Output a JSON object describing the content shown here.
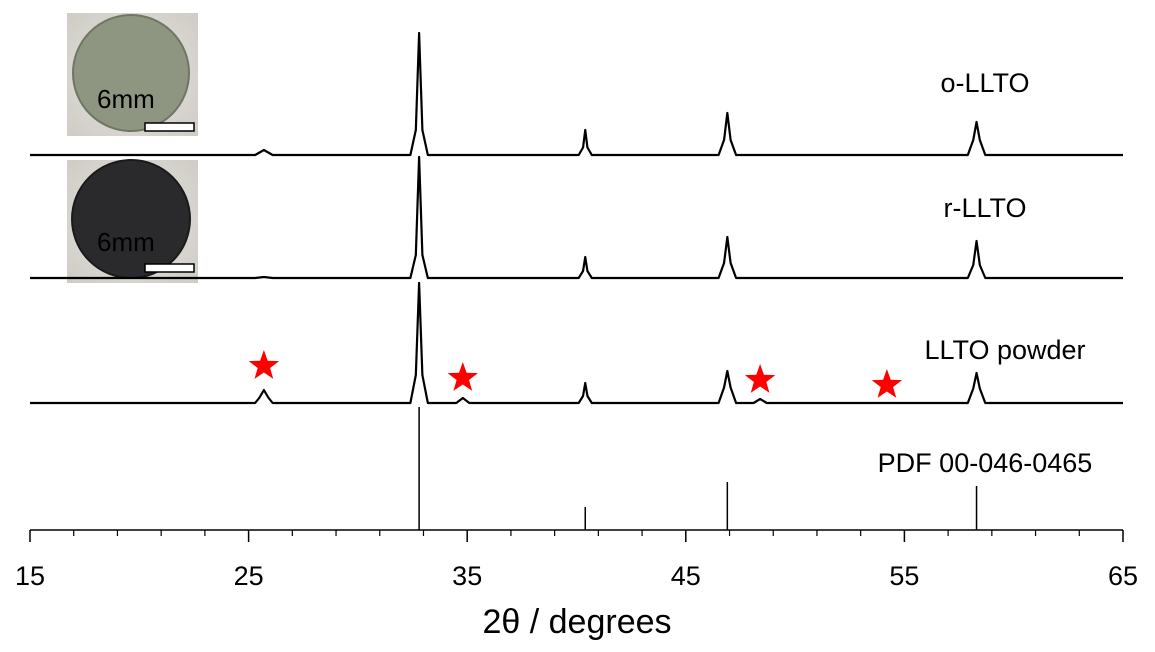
{
  "chart_data": {
    "type": "line",
    "x_label": "2θ / degrees",
    "xlim": [
      15,
      65
    ],
    "xticks": [
      15,
      25,
      35,
      45,
      55,
      65
    ],
    "xminorticks": [
      17,
      19,
      21,
      23,
      27,
      29,
      31,
      33,
      37,
      39,
      41,
      43,
      47,
      49,
      51,
      53,
      57,
      59,
      61,
      63
    ],
    "ylim": [
      0,
      100
    ],
    "series": [
      {
        "name": "o-LLTO",
        "color": "#000000",
        "x": [
          15,
          25.3,
          25.7,
          26.1,
          32.4,
          32.65,
          32.8,
          32.95,
          33.2,
          40.1,
          40.3,
          40.4,
          40.5,
          40.7,
          46.5,
          46.75,
          46.9,
          47.05,
          47.3,
          57.9,
          58.15,
          58.3,
          58.45,
          58.7,
          65
        ],
        "values": [
          75,
          75,
          76,
          75,
          75,
          80,
          99.4,
          80,
          75,
          75,
          76.5,
          80,
          76.5,
          75,
          75,
          78,
          83.4,
          78,
          75,
          75,
          78,
          81.6,
          78,
          75,
          75
        ]
      },
      {
        "name": "r-LLTO",
        "color": "#000000",
        "x": [
          15,
          25.3,
          25.7,
          26.1,
          32.4,
          32.65,
          32.8,
          32.95,
          33.2,
          40.1,
          40.3,
          40.4,
          40.5,
          40.7,
          46.5,
          46.75,
          46.9,
          47.05,
          47.3,
          57.9,
          58.15,
          58.3,
          58.45,
          58.7,
          65
        ],
        "values": [
          50.4,
          50.4,
          50.6,
          50.4,
          50.4,
          55,
          74.6,
          55,
          50.4,
          50.4,
          51.8,
          54.6,
          51.8,
          50.4,
          50.4,
          53.4,
          58.6,
          53.4,
          50.4,
          50.4,
          53,
          57.8,
          53,
          50.4,
          50.4
        ]
      },
      {
        "name": "LLTO powder",
        "color": "#000000",
        "x": [
          15,
          25.3,
          25.5,
          25.7,
          25.9,
          26.1,
          32.4,
          32.65,
          32.8,
          32.95,
          33.2,
          34.5,
          34.8,
          35.1,
          40.1,
          40.3,
          40.4,
          40.5,
          40.7,
          46.5,
          46.75,
          46.9,
          47.05,
          47.3,
          48.1,
          48.4,
          48.7,
          57.9,
          58.15,
          58.3,
          58.45,
          58.7,
          65
        ],
        "values": [
          25.4,
          25.4,
          26.5,
          28,
          26.5,
          25.4,
          25.4,
          31,
          49.4,
          31,
          25.4,
          25.4,
          26.4,
          25.4,
          25.4,
          26.8,
          29.4,
          26.8,
          25.4,
          25.4,
          28.5,
          31.8,
          28.5,
          25.4,
          25.4,
          26.2,
          25.4,
          25.4,
          28.3,
          31.4,
          28.3,
          25.4,
          25.4
        ]
      }
    ],
    "reference": {
      "name": "PDF 00-046-0465",
      "color": "#000000",
      "x": [
        32.8,
        40.4,
        46.9,
        58.3
      ],
      "values": [
        24.6,
        4.6,
        9.6,
        8.8
      ]
    },
    "markers": {
      "color": "#ff0000",
      "x": [
        25.7,
        34.8,
        48.4,
        54.2
      ],
      "y": [
        32.8,
        30.4,
        30,
        29
      ]
    },
    "insets": [
      {
        "label": "6mm"
      },
      {
        "label": "6mm"
      }
    ]
  }
}
